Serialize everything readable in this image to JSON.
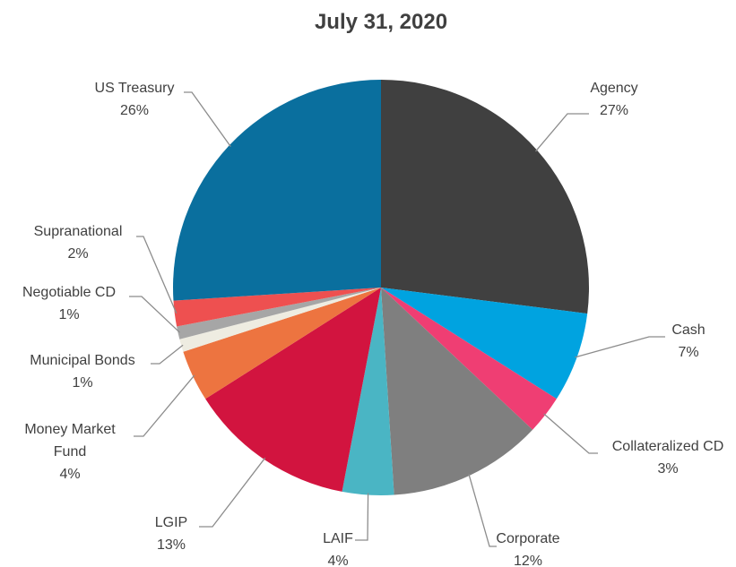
{
  "chart_data": {
    "type": "pie",
    "title": "July 31, 2020",
    "slices": [
      {
        "name": "Agency",
        "value": 27,
        "label": "27%",
        "color": "#404040"
      },
      {
        "name": "Cash",
        "value": 7,
        "label": "7%",
        "color": "#00a3e0"
      },
      {
        "name": "Collateralized CD",
        "value": 3,
        "label": "3%",
        "color": "#ef3e73"
      },
      {
        "name": "Corporate",
        "value": 12,
        "label": "12%",
        "color": "#7f7f7f"
      },
      {
        "name": "LAIF",
        "value": 4,
        "label": "4%",
        "color": "#4ab5c4"
      },
      {
        "name": "LGIP",
        "value": 13,
        "label": "13%",
        "color": "#d2143f"
      },
      {
        "name": "Money Market Fund",
        "value": 4,
        "label": "4%",
        "color": "#ed7440"
      },
      {
        "name": "Municipal Bonds",
        "value": 1,
        "label": "1%",
        "color": "#eeece1"
      },
      {
        "name": "Negotiable CD",
        "value": 1,
        "label": "1%",
        "color": "#a6a6a6"
      },
      {
        "name": "Supranational",
        "value": 2,
        "label": "2%",
        "color": "#ee5050"
      },
      {
        "name": "US Treasury",
        "value": 26,
        "label": "26%",
        "color": "#0a6f9e"
      }
    ]
  }
}
